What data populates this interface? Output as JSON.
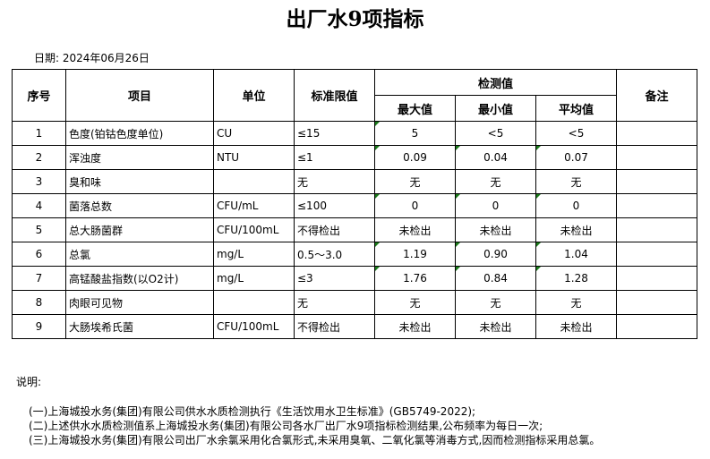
{
  "title": "出厂水9项指标",
  "date": "日期: 2024年06月26日",
  "headers": {
    "no": "序号",
    "item": "项目",
    "unit": "单位",
    "standard": "标准限值",
    "measured": "检测值",
    "max": "最大值",
    "min": "最小值",
    "avg": "平均值",
    "remark": "备注"
  },
  "rows": [
    {
      "no": "1",
      "item": "色度(铂钴色度单位)",
      "unit": "CU",
      "standard": "≤15",
      "max": "5",
      "min": "<5",
      "avg": "<5",
      "flags": [
        1,
        0,
        0
      ]
    },
    {
      "no": "2",
      "item": "浑浊度",
      "unit": "NTU",
      "standard": "≤1",
      "max": "0.09",
      "min": "0.04",
      "avg": "0.07",
      "flags": [
        1,
        1,
        1
      ]
    },
    {
      "no": "3",
      "item": "臭和味",
      "unit": "",
      "standard": "无",
      "max": "无",
      "min": "无",
      "avg": "无",
      "flags": [
        0,
        0,
        0
      ]
    },
    {
      "no": "4",
      "item": "菌落总数",
      "unit": "CFU/mL",
      "standard": "≤100",
      "max": "0",
      "min": "0",
      "avg": "0",
      "flags": [
        1,
        1,
        1
      ]
    },
    {
      "no": "5",
      "item": "总大肠菌群",
      "unit": "CFU/100mL",
      "standard": "不得检出",
      "max": "未检出",
      "min": "未检出",
      "avg": "未检出",
      "flags": [
        0,
        0,
        0
      ]
    },
    {
      "no": "6",
      "item": "总氯",
      "unit": "mg/L",
      "standard": "0.5～3.0",
      "max": "1.19",
      "min": "0.90",
      "avg": "1.04",
      "flags": [
        1,
        1,
        1
      ]
    },
    {
      "no": "7",
      "item": "高锰酸盐指数(以O2计)",
      "unit": "mg/L",
      "standard": "≤3",
      "max": "1.76",
      "min": "0.84",
      "avg": "1.28",
      "flags": [
        1,
        1,
        1
      ]
    },
    {
      "no": "8",
      "item": "肉眼可见物",
      "unit": "",
      "standard": "无",
      "max": "无",
      "min": "无",
      "avg": "无",
      "flags": [
        0,
        0,
        0
      ]
    },
    {
      "no": "9",
      "item": "大肠埃希氏菌",
      "unit": "CFU/100mL",
      "standard": "不得检出",
      "max": "未检出",
      "min": "未检出",
      "avg": "未检出",
      "flags": [
        0,
        0,
        0
      ]
    }
  ],
  "notes": {
    "heading": "说明:",
    "lines": [
      "(一)上海城投水务(集团)有限公司供水水质检测执行《生活饮用水卫生标准》(GB5749-2022);",
      "(二)上述供水水质检测值系上海城投水务(集团)有限公司各水厂出厂水9项指标检测结果,公布频率为每日一次;",
      "(三)上海城投水务(集团)有限公司出厂水余氯采用化合氯形式,未采用臭氧、二氧化氯等消毒方式,因而检测指标采用总氯。"
    ]
  },
  "colors": {
    "error_indicator": "#1a7a1a"
  }
}
